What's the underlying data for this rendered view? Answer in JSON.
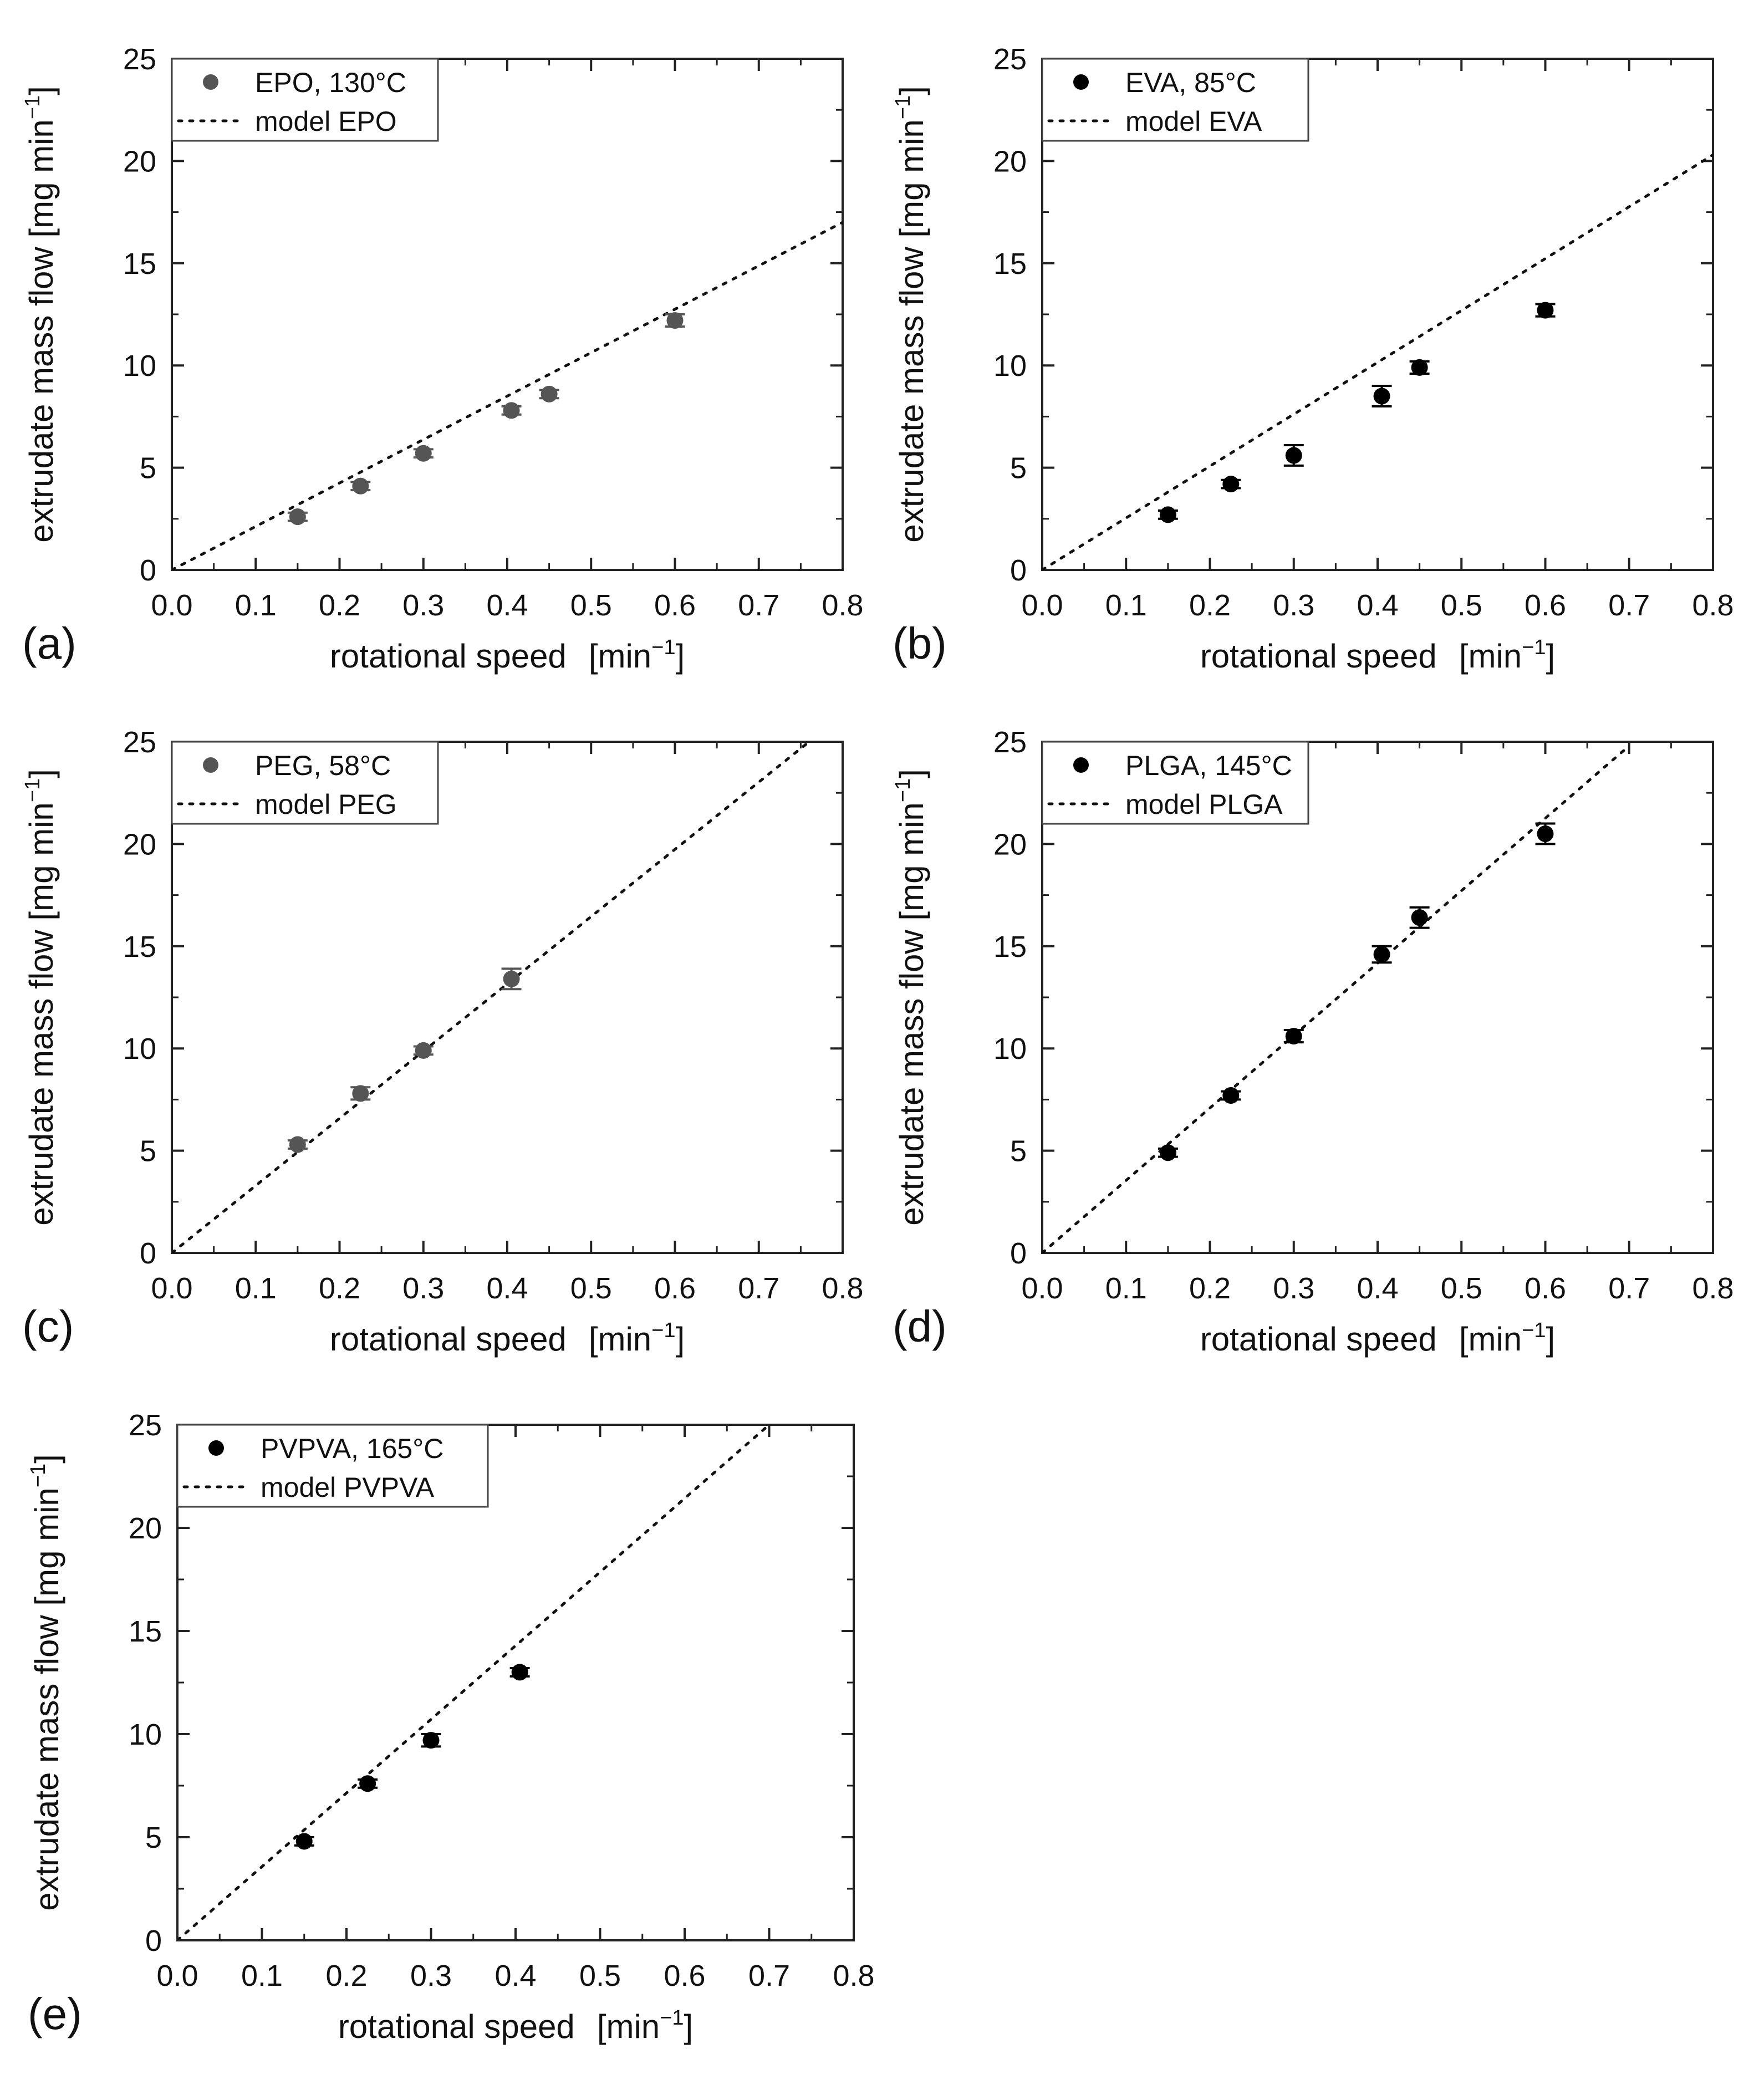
{
  "chart_data": [
    {
      "type": "scatter",
      "panel_label": "(a)",
      "xlabel": "rotational speed",
      "xunit": "[min",
      "xunit_exp": "−1",
      "xunit_close": "]",
      "ylabel": "extrudate mass flow [mg min",
      "ylabel_exp": "−1",
      "ylabel_close": "]",
      "xlim": [
        0.0,
        0.8
      ],
      "ylim": [
        0,
        25
      ],
      "xticks": [
        "0.0",
        "0.1",
        "0.2",
        "0.3",
        "0.4",
        "0.5",
        "0.6",
        "0.7",
        "0.8"
      ],
      "yticks": [
        "0",
        "5",
        "10",
        "15",
        "20",
        "25"
      ],
      "marker_color": "#555555",
      "legend": [
        "EPO, 130°C",
        "model EPO"
      ],
      "points": [
        {
          "x": 0.15,
          "y": 2.6,
          "err": 0.2
        },
        {
          "x": 0.225,
          "y": 4.1,
          "err": 0.2
        },
        {
          "x": 0.3,
          "y": 5.7,
          "err": 0.2
        },
        {
          "x": 0.405,
          "y": 7.8,
          "err": 0.2
        },
        {
          "x": 0.45,
          "y": 8.6,
          "err": 0.2
        },
        {
          "x": 0.6,
          "y": 12.2,
          "err": 0.3
        }
      ],
      "model": {
        "x": [
          0.0,
          0.8
        ],
        "y": [
          0.0,
          17.0
        ]
      }
    },
    {
      "type": "scatter",
      "panel_label": "(b)",
      "xlabel": "rotational speed",
      "xunit": "[min",
      "xunit_exp": "−1",
      "xunit_close": "]",
      "ylabel": "extrudate mass flow [mg min",
      "ylabel_exp": "−1",
      "ylabel_close": "]",
      "xlim": [
        0.0,
        0.8
      ],
      "ylim": [
        0,
        25
      ],
      "xticks": [
        "0.0",
        "0.1",
        "0.2",
        "0.3",
        "0.4",
        "0.5",
        "0.6",
        "0.7",
        "0.8"
      ],
      "yticks": [
        "0",
        "5",
        "10",
        "15",
        "20",
        "25"
      ],
      "marker_color": "#000000",
      "legend": [
        "EVA, 85°C",
        "model EVA"
      ],
      "points": [
        {
          "x": 0.15,
          "y": 2.7,
          "err": 0.2
        },
        {
          "x": 0.225,
          "y": 4.2,
          "err": 0.2
        },
        {
          "x": 0.3,
          "y": 5.6,
          "err": 0.5
        },
        {
          "x": 0.405,
          "y": 8.5,
          "err": 0.5
        },
        {
          "x": 0.45,
          "y": 9.9,
          "err": 0.3
        },
        {
          "x": 0.6,
          "y": 12.7,
          "err": 0.3
        }
      ],
      "model": {
        "x": [
          0.0,
          0.8
        ],
        "y": [
          0.0,
          20.3
        ]
      }
    },
    {
      "type": "scatter",
      "panel_label": "(c)",
      "xlabel": "rotational speed",
      "xunit": "[min",
      "xunit_exp": "−1",
      "xunit_close": "]",
      "ylabel": "extrudate mass flow [mg min",
      "ylabel_exp": "−1",
      "ylabel_close": "]",
      "xlim": [
        0.0,
        0.8
      ],
      "ylim": [
        0,
        25
      ],
      "xticks": [
        "0.0",
        "0.1",
        "0.2",
        "0.3",
        "0.4",
        "0.5",
        "0.6",
        "0.7",
        "0.8"
      ],
      "yticks": [
        "0",
        "5",
        "10",
        "15",
        "20",
        "25"
      ],
      "marker_color": "#555555",
      "legend": [
        "PEG, 58°C",
        "model PEG"
      ],
      "points": [
        {
          "x": 0.15,
          "y": 5.3,
          "err": 0.2
        },
        {
          "x": 0.225,
          "y": 7.8,
          "err": 0.3
        },
        {
          "x": 0.3,
          "y": 9.9,
          "err": 0.2
        },
        {
          "x": 0.405,
          "y": 13.4,
          "err": 0.5
        }
      ],
      "model": {
        "x": [
          0.0,
          0.76
        ],
        "y": [
          0.0,
          25.0
        ]
      }
    },
    {
      "type": "scatter",
      "panel_label": "(d)",
      "xlabel": "rotational speed",
      "xunit": "[min",
      "xunit_exp": "−1",
      "xunit_close": "]",
      "ylabel": "extrudate mass flow [mg min",
      "ylabel_exp": "−1",
      "ylabel_close": "]",
      "xlim": [
        0.0,
        0.8
      ],
      "ylim": [
        0,
        25
      ],
      "xticks": [
        "0.0",
        "0.1",
        "0.2",
        "0.3",
        "0.4",
        "0.5",
        "0.6",
        "0.7",
        "0.8"
      ],
      "yticks": [
        "0",
        "5",
        "10",
        "15",
        "20",
        "25"
      ],
      "marker_color": "#000000",
      "legend": [
        "PLGA, 145°C",
        "model PLGA"
      ],
      "points": [
        {
          "x": 0.15,
          "y": 4.9,
          "err": 0.2
        },
        {
          "x": 0.225,
          "y": 7.7,
          "err": 0.2
        },
        {
          "x": 0.3,
          "y": 10.6,
          "err": 0.3
        },
        {
          "x": 0.405,
          "y": 14.6,
          "err": 0.4
        },
        {
          "x": 0.45,
          "y": 16.4,
          "err": 0.5
        },
        {
          "x": 0.6,
          "y": 20.5,
          "err": 0.5
        }
      ],
      "model": {
        "x": [
          0.0,
          0.7
        ],
        "y": [
          0.0,
          24.8
        ]
      }
    },
    {
      "type": "scatter",
      "panel_label": "(e)",
      "xlabel": "rotational speed",
      "xunit": "[min",
      "xunit_exp": "−1",
      "xunit_close": "]",
      "ylabel": "extrudate mass flow [mg min",
      "ylabel_exp": "−1",
      "ylabel_close": "]",
      "xlim": [
        0.0,
        0.8
      ],
      "ylim": [
        0,
        25
      ],
      "xticks": [
        "0.0",
        "0.1",
        "0.2",
        "0.3",
        "0.4",
        "0.5",
        "0.6",
        "0.7",
        "0.8"
      ],
      "yticks": [
        "0",
        "5",
        "10",
        "15",
        "20",
        "25"
      ],
      "marker_color": "#000000",
      "legend": [
        "PVPVA, 165°C",
        "model PVPVA"
      ],
      "points": [
        {
          "x": 0.15,
          "y": 4.8,
          "err": 0.2
        },
        {
          "x": 0.225,
          "y": 7.6,
          "err": 0.2
        },
        {
          "x": 0.3,
          "y": 9.7,
          "err": 0.3
        },
        {
          "x": 0.405,
          "y": 13.0,
          "err": 0.2
        }
      ],
      "model": {
        "x": [
          0.0,
          0.7
        ],
        "y": [
          0.0,
          25.0
        ]
      }
    }
  ]
}
